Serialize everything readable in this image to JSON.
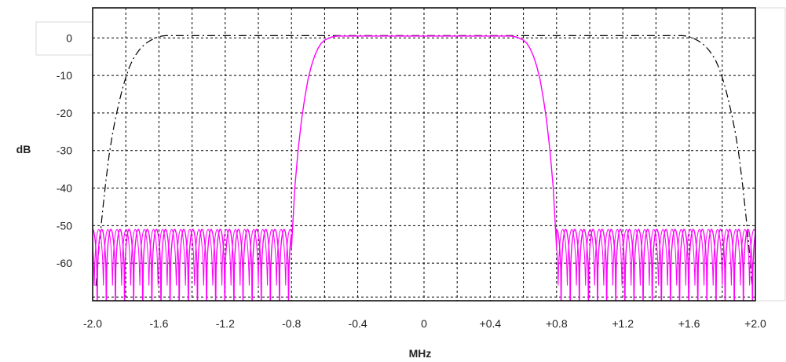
{
  "chart_data": {
    "type": "line",
    "title": "",
    "xlabel": "MHz",
    "ylabel": "dB",
    "xlim": [
      -2.0,
      2.0
    ],
    "ylim": [
      -70,
      8
    ],
    "grid": true,
    "x_ticks": [
      -2.0,
      -1.8,
      -1.6,
      -1.4,
      -1.2,
      -1.0,
      -0.8,
      -0.6,
      -0.4,
      -0.2,
      0,
      0.2,
      0.4,
      0.6,
      0.8,
      1.0,
      1.2,
      1.4,
      1.6,
      1.8,
      2.0
    ],
    "x_tick_labels": [
      {
        "value": -2.0,
        "label": "-2.0"
      },
      {
        "value": -1.6,
        "label": "-1.6"
      },
      {
        "value": -1.2,
        "label": "-1.2"
      },
      {
        "value": -0.8,
        "label": "-0.8"
      },
      {
        "value": -0.4,
        "label": "-0.4"
      },
      {
        "value": 0,
        "label": "0"
      },
      {
        "value": 0.4,
        "label": "+0.4"
      },
      {
        "value": 0.8,
        "label": "+0.8"
      },
      {
        "value": 1.2,
        "label": "+1.2"
      },
      {
        "value": 1.6,
        "label": "+1.6"
      },
      {
        "value": 2.0,
        "label": "+2.0"
      }
    ],
    "y_ticks": [
      {
        "value": 0,
        "label": "0"
      },
      {
        "value": -10,
        "label": "-10"
      },
      {
        "value": -20,
        "label": "-20"
      },
      {
        "value": -30,
        "label": "-30"
      },
      {
        "value": -40,
        "label": "-40"
      },
      {
        "value": -50,
        "label": "-50"
      },
      {
        "value": -60,
        "label": "-60"
      }
    ],
    "y_extra_grid": [
      -69
    ],
    "series": [
      {
        "style": "solid",
        "color": "#ff00ff",
        "passband": {
          "x": [
            -0.8,
            -0.78,
            -0.76,
            -0.74,
            -0.72,
            -0.7,
            -0.68,
            -0.66,
            -0.64,
            -0.62,
            -0.6,
            -0.58,
            -0.56,
            -0.54,
            -0.52,
            0.52,
            0.54,
            0.56,
            0.58,
            0.6,
            0.62,
            0.64,
            0.66,
            0.68,
            0.7,
            0.72,
            0.74,
            0.76,
            0.78,
            0.8
          ],
          "y": [
            -56,
            -40,
            -30,
            -22,
            -16,
            -11,
            -7.5,
            -4.8,
            -2.8,
            -1.4,
            -0.6,
            -0.2,
            0.2,
            0.4,
            0.5,
            0.5,
            0.4,
            0.2,
            -0.2,
            -0.6,
            -1.4,
            -2.8,
            -4.8,
            -7.5,
            -11,
            -16,
            -22,
            -30,
            -40,
            -56
          ]
        },
        "stopband": {
          "left_range": [
            -2.0,
            -0.8
          ],
          "right_range": [
            0.8,
            2.0
          ],
          "peak_db": -51,
          "null_db": -72,
          "lobe_width_mhz": 0.055,
          "secondary_trace_offset_mhz": 0.018
        }
      },
      {
        "style": "dash-dot",
        "color": "#000000",
        "x": [
          -1.98,
          -1.96,
          -1.94,
          -1.92,
          -1.9,
          -1.88,
          -1.86,
          -1.84,
          -1.82,
          -1.8,
          -1.78,
          -1.76,
          -1.74,
          -1.72,
          -1.7,
          -1.68,
          -1.66,
          -1.64,
          -1.62,
          -1.6,
          -1.58,
          -1.56,
          -1.54,
          -1.52,
          -1.5,
          1.5,
          1.52,
          1.54,
          1.56,
          1.58,
          1.6,
          1.62,
          1.64,
          1.66,
          1.68,
          1.7,
          1.72,
          1.74,
          1.76,
          1.78,
          1.8,
          1.82,
          1.84,
          1.86,
          1.88,
          1.9,
          1.92,
          1.94,
          1.96,
          1.98
        ],
        "y": [
          -66,
          -55,
          -46,
          -38,
          -31,
          -25.5,
          -21,
          -17,
          -13.5,
          -10.5,
          -8,
          -6,
          -4.5,
          -3.3,
          -2.3,
          -1.5,
          -0.9,
          -0.4,
          0,
          0.3,
          0.5,
          0.6,
          0.6,
          0.6,
          0.6,
          0.6,
          0.6,
          0.6,
          0.6,
          0.5,
          0.3,
          0,
          -0.4,
          -0.9,
          -1.5,
          -2.3,
          -3.3,
          -4.5,
          -6,
          -8,
          -10.5,
          -13.5,
          -17,
          -21,
          -25.5,
          -31,
          -38,
          -46,
          -55,
          -66
        ]
      }
    ]
  }
}
